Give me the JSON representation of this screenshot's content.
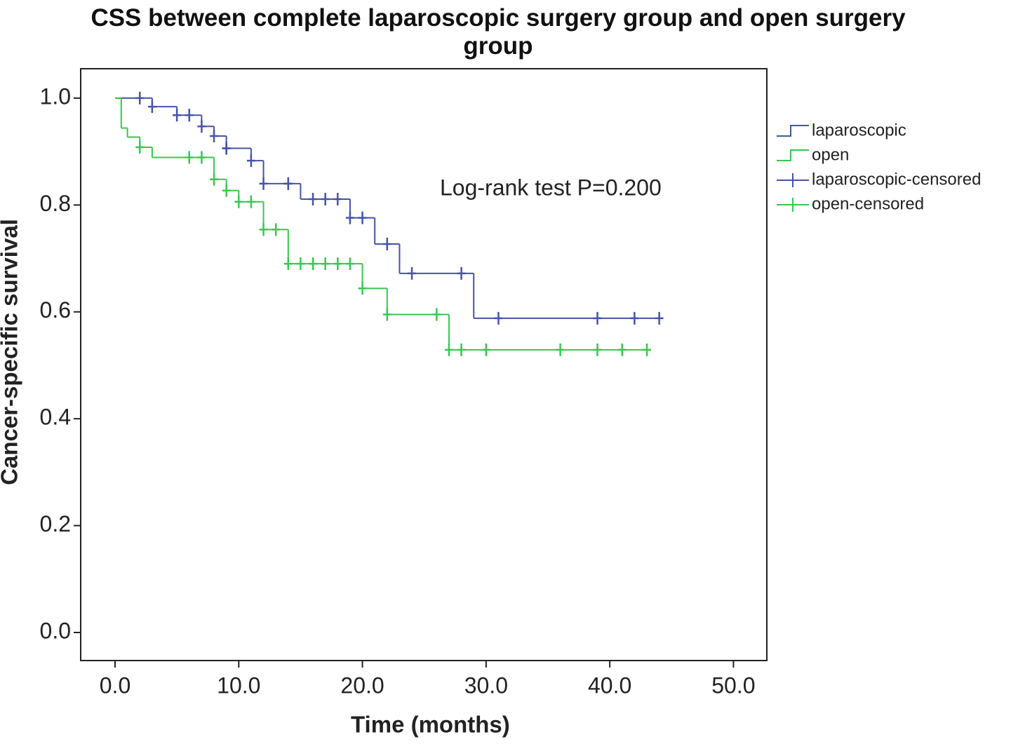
{
  "chart_data": {
    "type": "km",
    "title": "CSS between complete laparoscopic surgery group and open surgery group",
    "x_label": "Time (months)",
    "y_label": "Cancer-specific survival",
    "annotation": "Log-rank test P=0.200",
    "xlim": [
      -2.78,
      52.7
    ],
    "ylim": [
      -0.0525,
      1.055
    ],
    "xticks": [
      {
        "value": 0,
        "label": "0.0"
      },
      {
        "value": 10,
        "label": "10.0"
      },
      {
        "value": 20,
        "label": "20.0"
      },
      {
        "value": 30,
        "label": "30.0"
      },
      {
        "value": 40,
        "label": "40.0"
      },
      {
        "value": 50,
        "label": "50.0"
      }
    ],
    "yticks": [
      {
        "value": 0,
        "label": "0.0"
      },
      {
        "value": 0.2,
        "label": "0.2"
      },
      {
        "value": 0.4,
        "label": "0.4"
      },
      {
        "value": 0.6,
        "label": "0.6"
      },
      {
        "value": 0.8,
        "label": "0.8"
      },
      {
        "value": 1.0,
        "label": "1.0"
      }
    ],
    "legend": "right",
    "series": [
      {
        "name": "laparoscopic",
        "color": "#4553a8",
        "kind": "step",
        "x": [
          0,
          3,
          5,
          7,
          8,
          9,
          11,
          12,
          15,
          19,
          21,
          23,
          29,
          44
        ],
        "values": [
          1.0,
          0.984,
          0.968,
          0.947,
          0.929,
          0.906,
          0.883,
          0.84,
          0.811,
          0.776,
          0.727,
          0.672,
          0.588,
          0.588
        ]
      },
      {
        "name": "open",
        "color": "#36c84f",
        "kind": "step",
        "x": [
          0,
          0.5,
          1,
          2,
          3,
          8,
          9,
          10,
          12,
          14,
          20,
          22,
          27,
          43
        ],
        "values": [
          1.0,
          0.944,
          0.927,
          0.908,
          0.889,
          0.848,
          0.827,
          0.806,
          0.754,
          0.69,
          0.644,
          0.595,
          0.529,
          0.529
        ]
      },
      {
        "name": "laparoscopic-censored",
        "color": "#4553a8",
        "kind": "censor",
        "x": [
          2,
          3,
          5,
          6,
          6,
          7,
          8,
          9,
          9,
          11,
          12,
          14,
          14,
          16,
          17,
          18,
          19,
          20,
          22,
          24,
          28,
          31,
          39,
          42,
          44
        ],
        "values": [
          1.0,
          0.984,
          0.968,
          0.968,
          0.968,
          0.947,
          0.929,
          0.906,
          0.906,
          0.883,
          0.84,
          0.84,
          0.84,
          0.811,
          0.811,
          0.811,
          0.776,
          0.776,
          0.727,
          0.672,
          0.672,
          0.588,
          0.588,
          0.588,
          0.588
        ]
      },
      {
        "name": "open-censored",
        "color": "#36c84f",
        "kind": "censor",
        "x": [
          2,
          6,
          7,
          8,
          9,
          10,
          11,
          12,
          13,
          14,
          15,
          16,
          17,
          18,
          19,
          20,
          22,
          26,
          27,
          28,
          30,
          36,
          39,
          41,
          43
        ],
        "values": [
          0.908,
          0.889,
          0.889,
          0.848,
          0.827,
          0.806,
          0.806,
          0.754,
          0.754,
          0.69,
          0.69,
          0.69,
          0.69,
          0.69,
          0.69,
          0.644,
          0.595,
          0.595,
          0.529,
          0.529,
          0.529,
          0.529,
          0.529,
          0.529,
          0.529
        ]
      }
    ]
  }
}
